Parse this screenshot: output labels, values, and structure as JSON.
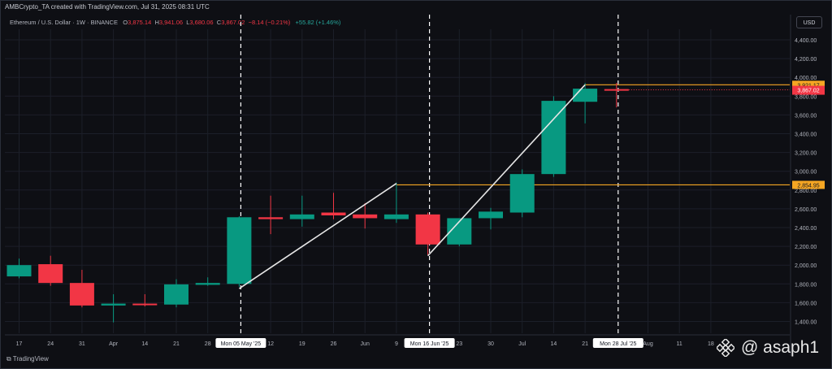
{
  "header": {
    "title": "AMBCrypto_TA created with TradingView.com, Jul 31, 2025 08:31 UTC",
    "currency": "USD",
    "footer_logo": "TradingView",
    "watermark": "@ asaph1"
  },
  "symbol": {
    "name": "Ethereum / U.S. Dollar · 1W · BINANCE",
    "open_label": "O",
    "open": "3,875.14",
    "high_label": "H",
    "high": "3,941.06",
    "low_label": "L",
    "low": "3,680.06",
    "close_label": "C",
    "close": "3,867.02",
    "change": "−8.14 (−0.21%)",
    "volume_change": "+55.82 (+1.46%)"
  },
  "colors": {
    "up": "#26a69a",
    "up_body": "#089981",
    "down": "#f23645",
    "level": "#f5a623",
    "trend": "#e6e6e6",
    "background": "#0e0f14",
    "grid": "#1c1f29"
  },
  "chart_data": {
    "type": "candlestick",
    "title": "Ethereum / U.S. Dollar · 1W · BINANCE",
    "y_scale": "linear",
    "ylim": [
      1250,
      4500
    ],
    "y_ticks": [
      1400,
      1600,
      1800,
      2000,
      2200,
      2400,
      2600,
      2800,
      3000,
      3200,
      3400,
      3600,
      3800,
      4000,
      4200,
      4400
    ],
    "y_tick_labels": [
      "1,400.00",
      "1,600.00",
      "1,800.00",
      "2,000.00",
      "2,200.00",
      "2,400.00",
      "2,600.00",
      "2,800.00",
      "3,000.00",
      "3,200.00",
      "3,400.00",
      "3,600.00",
      "3,800.00",
      "4,000.00",
      "4,200.00",
      "4,400.00"
    ],
    "x_tick_labels": [
      {
        "label": "17",
        "i": 0
      },
      {
        "label": "24",
        "i": 1
      },
      {
        "label": "31",
        "i": 2
      },
      {
        "label": "Apr",
        "i": 3
      },
      {
        "label": "14",
        "i": 4
      },
      {
        "label": "21",
        "i": 5
      },
      {
        "label": "28",
        "i": 6
      },
      {
        "label": "12",
        "i": 8
      },
      {
        "label": "19",
        "i": 9
      },
      {
        "label": "26",
        "i": 10
      },
      {
        "label": "Jun",
        "i": 11
      },
      {
        "label": "9",
        "i": 12
      },
      {
        "label": "23",
        "i": 14
      },
      {
        "label": "30",
        "i": 15
      },
      {
        "label": "Jul",
        "i": 16
      },
      {
        "label": "14",
        "i": 17
      },
      {
        "label": "21",
        "i": 18
      },
      {
        "label": "Aug",
        "i": 20
      },
      {
        "label": "11",
        "i": 21
      },
      {
        "label": "18",
        "i": 22
      }
    ],
    "grid": true,
    "candles": [
      {
        "date": "2025-03-17",
        "open": 1880,
        "high": 2070,
        "low": 1860,
        "close": 2000
      },
      {
        "date": "2025-03-24",
        "open": 2010,
        "high": 2100,
        "low": 1780,
        "close": 1810
      },
      {
        "date": "2025-03-31",
        "open": 1810,
        "high": 1950,
        "low": 1550,
        "close": 1570
      },
      {
        "date": "2025-04-07",
        "open": 1570,
        "high": 1690,
        "low": 1390,
        "close": 1590
      },
      {
        "date": "2025-04-14",
        "open": 1590,
        "high": 1690,
        "low": 1560,
        "close": 1580
      },
      {
        "date": "2025-04-21",
        "open": 1580,
        "high": 1850,
        "low": 1550,
        "close": 1795
      },
      {
        "date": "2025-04-28",
        "open": 1790,
        "high": 1870,
        "low": 1780,
        "close": 1810
      },
      {
        "date": "2025-05-05",
        "open": 1800,
        "high": 2520,
        "low": 1770,
        "close": 2510
      },
      {
        "date": "2025-05-12",
        "open": 2510,
        "high": 2740,
        "low": 2330,
        "close": 2490
      },
      {
        "date": "2025-05-19",
        "open": 2490,
        "high": 2740,
        "low": 2410,
        "close": 2540
      },
      {
        "date": "2025-05-26",
        "open": 2560,
        "high": 2770,
        "low": 2490,
        "close": 2530
      },
      {
        "date": "2025-06-02",
        "open": 2540,
        "high": 2660,
        "low": 2390,
        "close": 2500
      },
      {
        "date": "2025-06-09",
        "open": 2490,
        "high": 2880,
        "low": 2450,
        "close": 2540
      },
      {
        "date": "2025-06-16",
        "open": 2540,
        "high": 2560,
        "low": 2110,
        "close": 2220
      },
      {
        "date": "2025-06-23",
        "open": 2220,
        "high": 2500,
        "low": 2200,
        "close": 2500
      },
      {
        "date": "2025-06-30",
        "open": 2500,
        "high": 2610,
        "low": 2380,
        "close": 2570
      },
      {
        "date": "2025-07-07",
        "open": 2560,
        "high": 3020,
        "low": 2510,
        "close": 2970
      },
      {
        "date": "2025-07-14",
        "open": 2970,
        "high": 3800,
        "low": 2940,
        "close": 3750
      },
      {
        "date": "2025-07-21",
        "open": 3740,
        "high": 3940,
        "low": 3510,
        "close": 3880
      },
      {
        "date": "2025-07-28",
        "open": 3875.14,
        "high": 3941.06,
        "low": 3680.06,
        "close": 3867.02
      }
    ],
    "levels": [
      {
        "value": 3921.17,
        "label": "3,921.17"
      },
      {
        "value": 2854.95,
        "label": "2,854.95"
      }
    ],
    "last_price": {
      "value": 3867.02,
      "label": "3,867.02"
    },
    "trendlines": [
      {
        "from": {
          "i": 7,
          "price": 1750
        },
        "to": {
          "i": 12,
          "price": 2870
        }
      },
      {
        "from": {
          "i": 13,
          "price": 2100
        },
        "to": {
          "i": 18,
          "price": 3921
        }
      }
    ],
    "markers": [
      {
        "i": 7,
        "label": "Mon 05 May '25"
      },
      {
        "i": 13,
        "label": "Mon 16 Jun '25"
      },
      {
        "i": 19,
        "label": "Mon 28 Jul '25"
      }
    ]
  }
}
